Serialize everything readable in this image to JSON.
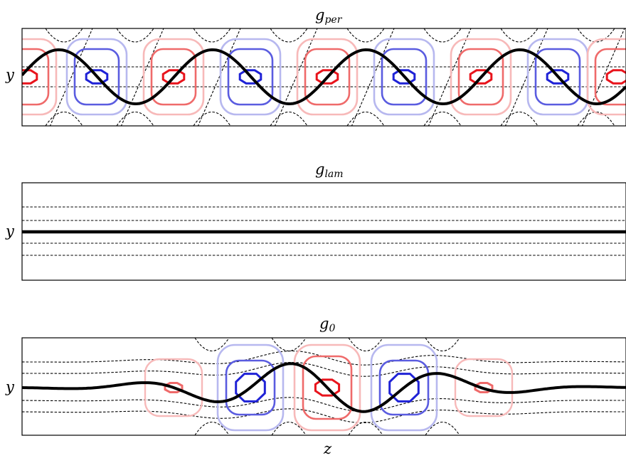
{
  "panels": [
    {
      "id": "per",
      "title_main": "g",
      "title_sub": "per",
      "ylabel": "y"
    },
    {
      "id": "lam",
      "title_main": "g",
      "title_sub": "lam",
      "ylabel": "y"
    },
    {
      "id": "zero",
      "title_main": "g",
      "title_sub": "0",
      "ylabel": "y"
    }
  ],
  "xlabel": "z",
  "colors": {
    "red_strong": "#e8141c",
    "red_mid": "#ef6a6a",
    "red_light": "#f7b9b9",
    "blue_strong": "#1f22d6",
    "blue_mid": "#5a5ce0",
    "blue_light": "#b7b8ef",
    "line": "#000000"
  }
}
